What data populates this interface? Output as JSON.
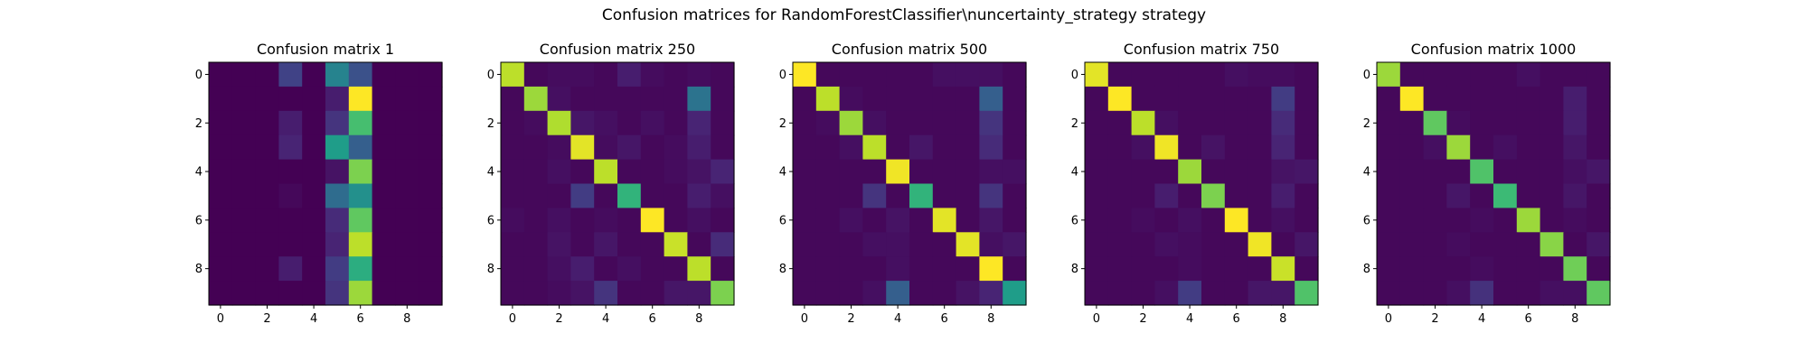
{
  "figure": {
    "suptitle": "Confusion matrices for RandomForestClassifier\\nuncertainty_strategy strategy"
  },
  "colormap": [
    "#440154",
    "#482878",
    "#3e4989",
    "#31688e",
    "#26828e",
    "#1f9e89",
    "#35b779",
    "#6ece58",
    "#b5de2b",
    "#fde725"
  ],
  "chart_data": [
    {
      "type": "heatmap",
      "title": "Confusion matrix 1",
      "xlabel": "",
      "ylabel": "",
      "x_ticks": [
        "0",
        "2",
        "4",
        "6",
        "8"
      ],
      "y_ticks": [
        "0",
        "2",
        "4",
        "6",
        "8"
      ],
      "vmax": 100,
      "grid": false,
      "matrix": [
        [
          0,
          0,
          0,
          20,
          0,
          45,
          25,
          0,
          0,
          0
        ],
        [
          0,
          0,
          0,
          0,
          0,
          8,
          100,
          0,
          0,
          0
        ],
        [
          0,
          0,
          0,
          8,
          0,
          15,
          70,
          0,
          0,
          0
        ],
        [
          0,
          0,
          0,
          10,
          0,
          55,
          30,
          0,
          0,
          0
        ],
        [
          0,
          0,
          0,
          0,
          0,
          5,
          80,
          0,
          0,
          0
        ],
        [
          0,
          0,
          0,
          2,
          0,
          35,
          50,
          0,
          0,
          0
        ],
        [
          0,
          0,
          0,
          0,
          0,
          12,
          75,
          0,
          0,
          0
        ],
        [
          0,
          0,
          0,
          0,
          0,
          10,
          90,
          0,
          0,
          0
        ],
        [
          0,
          0,
          0,
          8,
          0,
          18,
          62,
          0,
          0,
          0
        ],
        [
          0,
          0,
          0,
          0,
          0,
          15,
          85,
          0,
          0,
          0
        ]
      ]
    },
    {
      "type": "heatmap",
      "title": "Confusion matrix 250",
      "xlabel": "",
      "ylabel": "",
      "x_ticks": [
        "0",
        "2",
        "4",
        "6",
        "8"
      ],
      "y_ticks": [
        "0",
        "2",
        "4",
        "6",
        "8"
      ],
      "vmax": 100,
      "grid": false,
      "matrix": [
        [
          90,
          2,
          3,
          3,
          2,
          8,
          3,
          2,
          3,
          2
        ],
        [
          2,
          85,
          4,
          2,
          2,
          2,
          2,
          2,
          38,
          2
        ],
        [
          2,
          3,
          88,
          6,
          4,
          2,
          4,
          2,
          10,
          2
        ],
        [
          2,
          2,
          3,
          96,
          3,
          6,
          2,
          3,
          8,
          2
        ],
        [
          2,
          2,
          4,
          2,
          90,
          2,
          2,
          3,
          5,
          10
        ],
        [
          2,
          2,
          2,
          18,
          2,
          65,
          2,
          2,
          8,
          4
        ],
        [
          3,
          2,
          4,
          2,
          3,
          2,
          100,
          2,
          4,
          2
        ],
        [
          2,
          2,
          5,
          2,
          6,
          2,
          2,
          92,
          2,
          12
        ],
        [
          2,
          2,
          4,
          8,
          2,
          4,
          2,
          2,
          90,
          2
        ],
        [
          2,
          2,
          3,
          5,
          15,
          2,
          2,
          6,
          6,
          80
        ]
      ]
    },
    {
      "type": "heatmap",
      "title": "Confusion matrix 500",
      "xlabel": "",
      "ylabel": "",
      "x_ticks": [
        "0",
        "2",
        "4",
        "6",
        "8"
      ],
      "y_ticks": [
        "0",
        "2",
        "4",
        "6",
        "8"
      ],
      "vmax": 100,
      "grid": false,
      "matrix": [
        [
          100,
          2,
          2,
          2,
          2,
          2,
          4,
          4,
          4,
          2
        ],
        [
          2,
          90,
          3,
          2,
          2,
          2,
          2,
          2,
          30,
          2
        ],
        [
          2,
          3,
          85,
          4,
          2,
          2,
          2,
          2,
          15,
          2
        ],
        [
          2,
          2,
          4,
          90,
          2,
          6,
          2,
          2,
          12,
          2
        ],
        [
          2,
          2,
          2,
          2,
          98,
          2,
          2,
          2,
          4,
          4
        ],
        [
          2,
          2,
          2,
          15,
          2,
          65,
          2,
          2,
          15,
          2
        ],
        [
          2,
          2,
          4,
          2,
          5,
          2,
          96,
          2,
          6,
          2
        ],
        [
          2,
          2,
          2,
          4,
          4,
          2,
          2,
          96,
          4,
          6
        ],
        [
          2,
          2,
          2,
          2,
          4,
          2,
          2,
          2,
          100,
          2
        ],
        [
          2,
          2,
          2,
          4,
          30,
          2,
          2,
          5,
          10,
          55
        ]
      ]
    },
    {
      "type": "heatmap",
      "title": "Confusion matrix 750",
      "xlabel": "",
      "ylabel": "",
      "x_ticks": [
        "0",
        "2",
        "4",
        "6",
        "8"
      ],
      "y_ticks": [
        "0",
        "2",
        "4",
        "6",
        "8"
      ],
      "vmax": 100,
      "grid": false,
      "matrix": [
        [
          96,
          2,
          2,
          2,
          2,
          2,
          4,
          3,
          3,
          2
        ],
        [
          2,
          100,
          2,
          2,
          2,
          2,
          2,
          2,
          18,
          2
        ],
        [
          2,
          2,
          90,
          4,
          2,
          2,
          2,
          2,
          12,
          2
        ],
        [
          2,
          2,
          4,
          98,
          2,
          5,
          2,
          2,
          10,
          2
        ],
        [
          2,
          2,
          2,
          2,
          85,
          2,
          2,
          2,
          5,
          6
        ],
        [
          2,
          2,
          2,
          8,
          2,
          80,
          2,
          2,
          8,
          2
        ],
        [
          2,
          2,
          3,
          2,
          4,
          2,
          100,
          2,
          4,
          2
        ],
        [
          2,
          2,
          2,
          4,
          3,
          2,
          2,
          98,
          2,
          6
        ],
        [
          2,
          2,
          2,
          2,
          3,
          2,
          2,
          2,
          92,
          2
        ],
        [
          2,
          2,
          2,
          4,
          18,
          2,
          2,
          6,
          6,
          72
        ]
      ]
    },
    {
      "type": "heatmap",
      "title": "Confusion matrix 1000",
      "xlabel": "",
      "ylabel": "",
      "x_ticks": [
        "0",
        "2",
        "4",
        "6",
        "8"
      ],
      "y_ticks": [
        "0",
        "2",
        "4",
        "6",
        "8"
      ],
      "vmax": 100,
      "grid": false,
      "matrix": [
        [
          85,
          2,
          2,
          2,
          2,
          2,
          4,
          2,
          2,
          2
        ],
        [
          2,
          100,
          2,
          2,
          2,
          2,
          2,
          2,
          8,
          2
        ],
        [
          2,
          2,
          75,
          3,
          2,
          2,
          2,
          2,
          8,
          2
        ],
        [
          2,
          2,
          4,
          85,
          2,
          4,
          2,
          2,
          6,
          2
        ],
        [
          2,
          2,
          2,
          2,
          72,
          2,
          2,
          2,
          4,
          6
        ],
        [
          2,
          2,
          2,
          6,
          2,
          68,
          2,
          2,
          6,
          2
        ],
        [
          2,
          2,
          2,
          2,
          3,
          2,
          85,
          2,
          3,
          2
        ],
        [
          2,
          2,
          2,
          3,
          2,
          2,
          2,
          82,
          2,
          6
        ],
        [
          2,
          2,
          2,
          2,
          3,
          2,
          2,
          2,
          78,
          2
        ],
        [
          2,
          2,
          2,
          4,
          14,
          2,
          2,
          4,
          4,
          75
        ]
      ]
    }
  ]
}
